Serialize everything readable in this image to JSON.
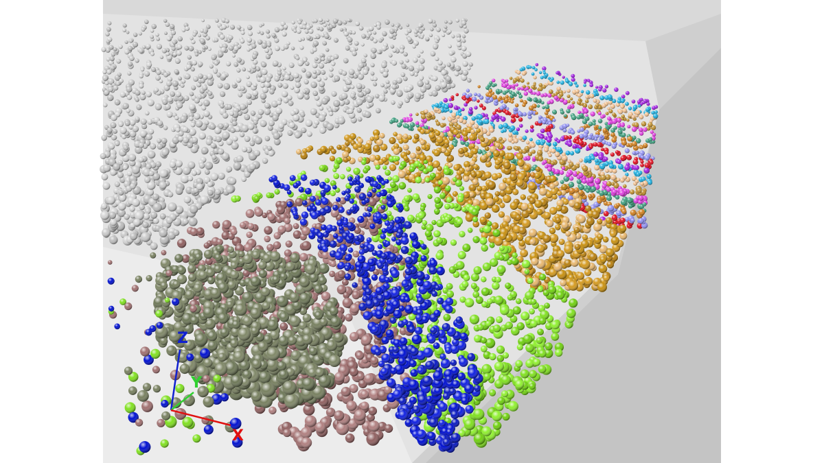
{
  "axes": {
    "x_label": "X",
    "y_label": "Y",
    "z_label": "Z"
  }
}
